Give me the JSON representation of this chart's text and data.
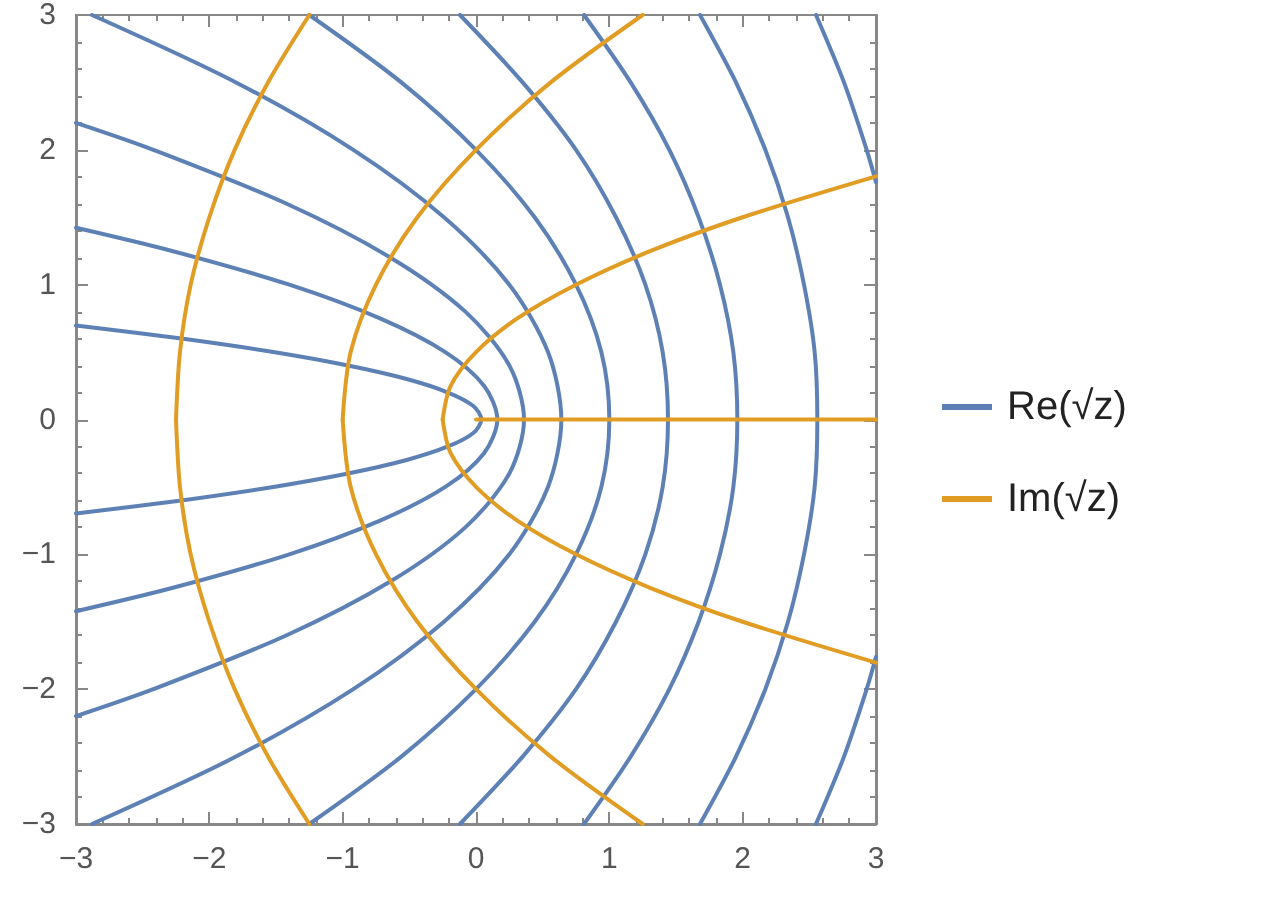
{
  "chart_data": {
    "type": "line",
    "xlim": [
      -3,
      3
    ],
    "ylim": [
      -3,
      3
    ],
    "xticks": [
      -3,
      -2,
      -1,
      0,
      1,
      2,
      3
    ],
    "yticks": [
      -3,
      -2,
      -1,
      0,
      1,
      2,
      3
    ],
    "grid": false,
    "legend": "right",
    "marker": "none",
    "line_style": "solid",
    "series": [
      {
        "name": "Re(√z)",
        "color": "#5e81b5",
        "x": [
          -3.0,
          -2.21,
          -1.52,
          -0.96,
          -0.52,
          -0.21,
          -0.02,
          0.04,
          -0.02,
          -0.21,
          -0.52,
          -0.96,
          -1.52,
          -2.21,
          -3.0
        ],
        "values": [
          -0.697,
          -0.6,
          -0.5,
          -0.4,
          -0.3,
          -0.2,
          -0.1,
          0,
          0.1,
          0.2,
          0.3,
          0.4,
          0.5,
          0.6,
          0.697
        ]
      },
      {
        "color": "#5e81b5",
        "x": [
          -3.0,
          -2.28,
          -1.4,
          -0.72,
          -0.23,
          0.06,
          0.16,
          0.06,
          -0.23,
          -0.72,
          -1.4,
          -2.28,
          -3.0
        ],
        "values": [
          -1.422,
          -1.25,
          -1,
          -0.75,
          -0.5,
          -0.25,
          0,
          0.25,
          0.5,
          0.75,
          1,
          1.25,
          1.422
        ]
      },
      {
        "color": "#5e81b5",
        "x": [
          -3.0,
          -2.42,
          -1.42,
          -0.64,
          -0.08,
          0.25,
          0.36,
          0.25,
          -0.08,
          -0.64,
          -1.42,
          -2.42,
          -3.0
        ],
        "values": [
          -2.2,
          -2,
          -1.6,
          -1.2,
          -0.8,
          -0.4,
          0,
          0.4,
          0.8,
          1.2,
          1.6,
          2,
          2.2
        ]
      },
      {
        "color": "#5e81b5",
        "x": [
          -2.88,
          -1.8,
          -0.92,
          -0.24,
          0.25,
          0.54,
          0.64,
          0.54,
          0.25,
          -0.24,
          -0.92,
          -1.8,
          -2.88
        ],
        "values": [
          -3,
          -2.5,
          -2,
          -1.5,
          -1,
          -0.5,
          0,
          0.5,
          1,
          1.5,
          2,
          2.5,
          3
        ]
      },
      {
        "color": "#5e81b5",
        "x": [
          -1.25,
          -0.56,
          0,
          0.44,
          0.75,
          0.94,
          1,
          0.94,
          0.75,
          0.44,
          0,
          -0.56,
          -1.25
        ],
        "values": [
          -3,
          -2.5,
          -2,
          -1.5,
          -1,
          -0.5,
          0,
          0.5,
          1,
          1.5,
          2,
          2.5,
          3
        ]
      },
      {
        "color": "#5e81b5",
        "x": [
          -0.12,
          0.35,
          0.75,
          1.05,
          1.27,
          1.4,
          1.44,
          1.4,
          1.27,
          1.05,
          0.75,
          0.35,
          -0.12
        ],
        "values": [
          -3,
          -2.5,
          -2,
          -1.5,
          -1,
          -0.5,
          0,
          0.5,
          1,
          1.5,
          2,
          2.5,
          3
        ]
      },
      {
        "color": "#5e81b5",
        "x": [
          0.81,
          1.16,
          1.45,
          1.67,
          1.83,
          1.93,
          1.96,
          1.93,
          1.83,
          1.67,
          1.45,
          1.16,
          0.81
        ],
        "values": [
          -3,
          -2.5,
          -2,
          -1.5,
          -1,
          -0.5,
          0,
          0.5,
          1,
          1.5,
          2,
          2.5,
          3
        ]
      },
      {
        "color": "#5e81b5",
        "x": [
          1.68,
          1.95,
          2.17,
          2.34,
          2.46,
          2.54,
          2.56,
          2.54,
          2.46,
          2.34,
          2.17,
          1.95,
          1.68
        ],
        "values": [
          -3,
          -2.5,
          -2,
          -1.5,
          -1,
          -0.5,
          0,
          0.5,
          1,
          1.5,
          2,
          2.5,
          3
        ]
      },
      {
        "color": "#5e81b5",
        "x": [
          3.0,
          2.93,
          2.76,
          2.55
        ],
        "values": [
          1.76,
          2,
          2.5,
          3
        ]
      },
      {
        "color": "#5e81b5",
        "x": [
          3.0,
          2.93,
          2.76,
          2.55
        ],
        "values": [
          -1.76,
          -2,
          -2.5,
          -3
        ]
      },
      {
        "name": "Im(√z)",
        "color": "#e19c24",
        "x": [
          0,
          3
        ],
        "values": [
          0,
          0
        ]
      },
      {
        "color": "#e19c24",
        "x": [
          -0.25,
          -0.19,
          0,
          0.31,
          0.75,
          1.31,
          2.0,
          3.0
        ],
        "values": [
          0,
          0.25,
          0.5,
          0.75,
          1,
          1.25,
          1.5,
          1.803
        ]
      },
      {
        "color": "#e19c24",
        "x": [
          -0.25,
          -0.19,
          0,
          0.31,
          0.75,
          1.31,
          2.0,
          3.0
        ],
        "values": [
          0,
          -0.25,
          -0.5,
          -0.75,
          -1,
          -1.25,
          -1.5,
          -1.803
        ]
      },
      {
        "color": "#e19c24",
        "x": [
          -1,
          -0.94,
          -0.75,
          -0.44,
          0,
          0.56,
          1.25
        ],
        "values": [
          0,
          0.5,
          1,
          1.5,
          2,
          2.5,
          3
        ]
      },
      {
        "color": "#e19c24",
        "x": [
          -1,
          -0.94,
          -0.75,
          -0.44,
          0,
          0.56,
          1.25
        ],
        "values": [
          0,
          -0.5,
          -1,
          -1.5,
          -2,
          -2.5,
          -3
        ]
      },
      {
        "color": "#e19c24",
        "x": [
          -2.25,
          -2.22,
          -2.14,
          -2.0,
          -1.81,
          -1.56,
          -1.25
        ],
        "values": [
          0,
          0.5,
          1,
          1.5,
          2,
          2.5,
          3
        ]
      },
      {
        "color": "#e19c24",
        "x": [
          -2.25,
          -2.22,
          -2.14,
          -2.0,
          -1.81,
          -1.56,
          -1.25
        ],
        "values": [
          0,
          -0.5,
          -1,
          -1.5,
          -2,
          -2.5,
          -3
        ]
      }
    ]
  }
}
